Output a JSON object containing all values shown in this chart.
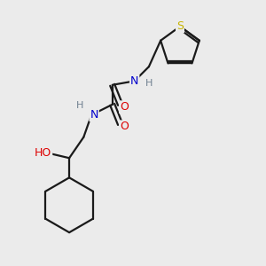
{
  "bg_color": "#ebebeb",
  "bond_color": "#1a1a1a",
  "bond_width": 1.6,
  "atom_colors": {
    "S": "#c8b400",
    "O": "#dd0000",
    "N": "#0000cc",
    "H": "#708090",
    "C": "#1a1a1a"
  },
  "figsize": [
    3.0,
    3.0
  ],
  "dpi": 100,
  "xlim": [
    0,
    10
  ],
  "ylim": [
    0,
    10
  ]
}
